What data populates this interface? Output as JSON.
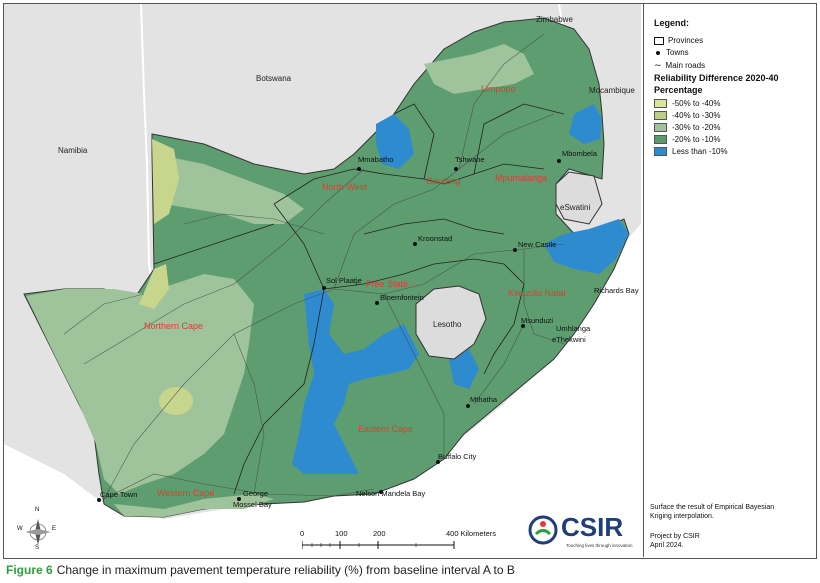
{
  "legend": {
    "title": "Legend:",
    "provinces": "Provinces",
    "towns": "Towns",
    "roads": "Main roads",
    "subtitle1": "Reliability Difference 2020-40",
    "subtitle2": "Percentage",
    "classes": [
      {
        "label": "-50% to -40%",
        "color": "#dce39a"
      },
      {
        "label": "-40% to -30%",
        "color": "#b8cf86"
      },
      {
        "label": "-30% to -20%",
        "color": "#9fc39a"
      },
      {
        "label": "-20% to -10%",
        "color": "#5b9a6c"
      },
      {
        "label": "Less than -10%",
        "color": "#2f8bd0"
      }
    ]
  },
  "notes": {
    "surface1": "Surface the result of Empirical Bayesian",
    "surface2": "Kriging interpolation.",
    "project1": "Project by CSIR",
    "project2": "April 2024."
  },
  "countries": [
    "Zimbabwe",
    "Botswana",
    "Namibia",
    "Mocambique",
    "eSwatini",
    "Lesotho"
  ],
  "provinces": [
    "Limpopo",
    "North West",
    "Gauteng",
    "Mpumalanga",
    "Free State",
    "Kwazulu Natal",
    "Northern Cape",
    "Eastern Cape",
    "Western Cape"
  ],
  "towns": [
    "Tshwane",
    "Mbombela",
    "Mmabatho",
    "Kroonstad",
    "New Castle",
    "Sol Plaatje",
    "Bloemfontein",
    "Richards Bay",
    "Msunduzi",
    "Umhlanga",
    "eThekwini",
    "Mthatha",
    "Buffalo City",
    "Nelson Mandela Bay",
    "George",
    "Mossel Bay",
    "Cape Town"
  ],
  "scale": {
    "ticks": [
      "0",
      "100",
      "200",
      "400 Kilometers"
    ]
  },
  "compass": {
    "n": "N",
    "s": "S",
    "e": "E",
    "w": "W"
  },
  "logo": {
    "name": "CSIR",
    "tagline": "Touching lives through innovation"
  },
  "caption": {
    "figure": "Figure 6",
    "text": "Change in maximum pavement temperature reliability (%) from baseline interval A to B"
  }
}
